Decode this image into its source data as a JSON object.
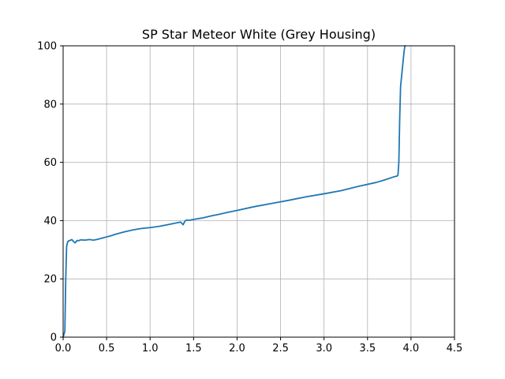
{
  "chart_data": {
    "type": "line",
    "title": "SP Star Meteor White (Grey Housing)",
    "xlabel": "",
    "ylabel": "",
    "xlim": [
      0,
      4.5
    ],
    "ylim": [
      0,
      100
    ],
    "x_ticks": [
      0.0,
      0.5,
      1.0,
      1.5,
      2.0,
      2.5,
      3.0,
      3.5,
      4.0,
      4.5
    ],
    "x_tick_labels": [
      "0.0",
      "0.5",
      "1.0",
      "1.5",
      "2.0",
      "2.5",
      "3.0",
      "3.5",
      "4.0",
      "4.5"
    ],
    "y_ticks": [
      0,
      20,
      40,
      60,
      80,
      100
    ],
    "y_tick_labels": [
      "0",
      "20",
      "40",
      "60",
      "80",
      "100"
    ],
    "grid": true,
    "series": [
      {
        "color": "#1f77b4",
        "x": [
          0.0,
          0.02,
          0.03,
          0.04,
          0.05,
          0.06,
          0.08,
          0.1,
          0.12,
          0.14,
          0.16,
          0.18,
          0.2,
          0.25,
          0.3,
          0.35,
          0.4,
          0.45,
          0.5,
          0.55,
          0.6,
          0.7,
          0.8,
          0.9,
          1.0,
          1.05,
          1.1,
          1.2,
          1.3,
          1.35,
          1.38,
          1.4,
          1.42,
          1.45,
          1.5,
          1.6,
          1.7,
          1.8,
          1.9,
          2.0,
          2.2,
          2.4,
          2.6,
          2.8,
          3.0,
          3.2,
          3.4,
          3.6,
          3.7,
          3.8,
          3.84,
          3.85,
          3.86,
          3.87,
          3.88,
          3.9,
          3.92,
          3.93
        ],
        "y": [
          0,
          2,
          20,
          31,
          32.5,
          33,
          33.2,
          33.5,
          32.8,
          32.4,
          33.2,
          33.1,
          33.4,
          33.3,
          33.5,
          33.3,
          33.6,
          34.0,
          34.4,
          34.8,
          35.3,
          36.1,
          36.8,
          37.3,
          37.6,
          37.8,
          38.0,
          38.6,
          39.2,
          39.5,
          38.6,
          39.8,
          40.2,
          40.1,
          40.4,
          40.9,
          41.6,
          42.2,
          42.9,
          43.5,
          44.8,
          45.9,
          47.0,
          48.2,
          49.2,
          50.3,
          51.8,
          53.1,
          54.0,
          55.0,
          55.3,
          55.6,
          60,
          75,
          86,
          92,
          98,
          100
        ]
      }
    ]
  }
}
